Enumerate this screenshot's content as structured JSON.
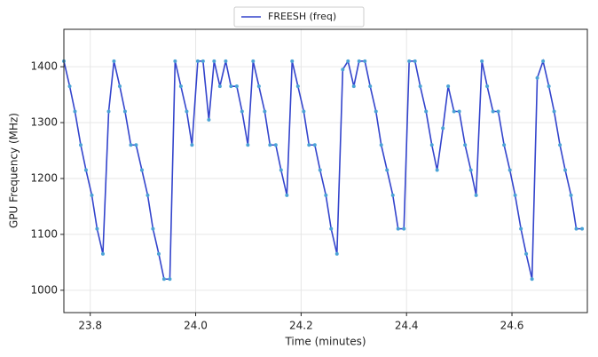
{
  "chart_data": {
    "type": "line",
    "x_label": "Time (minutes)",
    "y_label": "GPU Frequency (MHz)",
    "x": [
      23.75,
      23.761,
      23.771,
      23.782,
      23.792,
      23.803,
      23.813,
      23.824,
      23.835,
      23.845,
      23.856,
      23.866,
      23.877,
      23.887,
      23.898,
      23.909,
      23.919,
      23.93,
      23.94,
      23.951,
      23.961,
      23.972,
      23.983,
      23.993,
      24.004,
      24.014,
      24.025,
      24.035,
      24.046,
      24.057,
      24.067,
      24.078,
      24.088,
      24.099,
      24.109,
      24.12,
      24.131,
      24.141,
      24.152,
      24.162,
      24.173,
      24.183,
      24.194,
      24.205,
      24.215,
      24.226,
      24.236,
      24.247,
      24.257,
      24.268,
      24.279,
      24.289,
      24.3,
      24.31,
      24.321,
      24.331,
      24.342,
      24.352,
      24.363,
      24.374,
      24.384,
      24.395,
      24.405,
      24.416,
      24.426,
      24.437,
      24.448,
      24.458,
      24.469,
      24.479,
      24.49,
      24.5,
      24.511,
      24.522,
      24.532,
      24.543,
      24.553,
      24.564,
      24.574,
      24.585,
      24.596,
      24.606,
      24.617,
      24.627,
      24.638,
      24.648,
      24.659,
      24.67,
      24.68,
      24.691,
      24.701,
      24.712,
      24.722,
      24.733
    ],
    "series": [
      {
        "name": "FREESH (freq)",
        "color": "#3344cc",
        "marker_color": "#4ba3d6",
        "values": [
          1410,
          1365,
          1320,
          1260,
          1215,
          1170,
          1110,
          1065,
          1320,
          1410,
          1365,
          1320,
          1260,
          1260,
          1215,
          1170,
          1110,
          1065,
          1020,
          1020,
          1410,
          1365,
          1320,
          1260,
          1410,
          1410,
          1305,
          1410,
          1365,
          1410,
          1365,
          1365,
          1320,
          1260,
          1410,
          1365,
          1320,
          1260,
          1260,
          1215,
          1170,
          1410,
          1365,
          1320,
          1260,
          1260,
          1215,
          1170,
          1110,
          1065,
          1395,
          1410,
          1365,
          1410,
          1410,
          1365,
          1320,
          1260,
          1215,
          1170,
          1110,
          1110,
          1410,
          1410,
          1365,
          1320,
          1260,
          1215,
          1290,
          1365,
          1320,
          1320,
          1260,
          1215,
          1170,
          1410,
          1365,
          1320,
          1320,
          1260,
          1215,
          1170,
          1110,
          1065,
          1020,
          1380,
          1410,
          1365,
          1320,
          1260,
          1215,
          1170,
          1110,
          1110
        ]
      }
    ],
    "xlim": [
      23.75,
      24.743
    ],
    "xticks": [
      23.8,
      {
        "value": 24.0,
        "label": "24.0"
      },
      24.2,
      24.4,
      24.6
    ],
    "ylim": [
      960,
      1467
    ],
    "yticks": [
      1000,
      1100,
      1200,
      1300,
      1400
    ],
    "grid": true,
    "legend": "upper center"
  }
}
